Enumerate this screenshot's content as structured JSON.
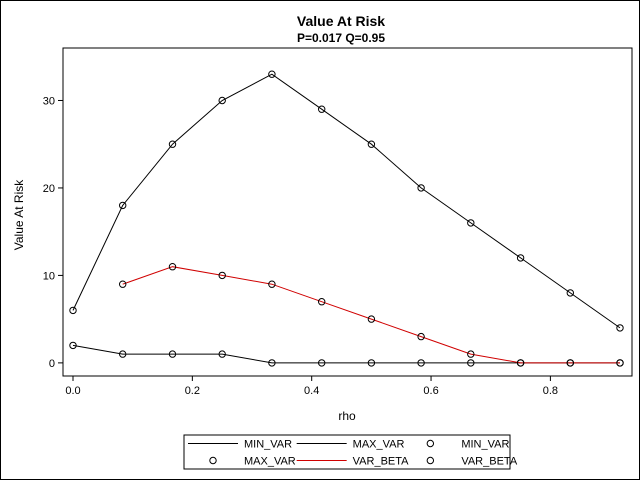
{
  "chart_data": {
    "type": "line",
    "title": "Value At Risk",
    "subtitle": "P=0.017 Q=0.95",
    "xlabel": "rho",
    "ylabel": "Value At Risk",
    "xlim": [
      0.0,
      0.92
    ],
    "ylim": [
      -1.5,
      36
    ],
    "xticks": [
      "0.0",
      "0.2",
      "0.4",
      "0.6",
      "0.8"
    ],
    "xtick_values": [
      0.0,
      0.2,
      0.4,
      0.6,
      0.8
    ],
    "yticks": [
      "0",
      "10",
      "20",
      "30"
    ],
    "ytick_values": [
      0,
      10,
      20,
      30
    ],
    "grid": false,
    "legend_position": "bottom",
    "series": [
      {
        "name": "MIN_VAR",
        "color": "#000000",
        "x": [
          0.0,
          0.0833,
          0.1667,
          0.25,
          0.3333,
          0.4167,
          0.5,
          0.5833,
          0.6667,
          0.75,
          0.8333,
          0.9167
        ],
        "values": [
          2,
          1,
          1,
          1,
          0,
          0,
          0,
          0,
          0,
          0,
          0,
          0
        ]
      },
      {
        "name": "MAX_VAR",
        "color": "#000000",
        "x": [
          0.0,
          0.0833,
          0.1667,
          0.25,
          0.3333,
          0.4167,
          0.5,
          0.5833,
          0.6667,
          0.75,
          0.8333,
          0.9167
        ],
        "values": [
          6,
          18,
          25,
          30,
          33,
          29,
          25,
          20,
          16,
          12,
          8,
          4
        ]
      },
      {
        "name": "VAR_BETA",
        "color": "#d00000",
        "x": [
          0.0833,
          0.1667,
          0.25,
          0.3333,
          0.4167,
          0.5,
          0.5833,
          0.6667,
          0.75,
          0.8333,
          0.9167
        ],
        "values": [
          9,
          11,
          10,
          9,
          7,
          5,
          3,
          1,
          0,
          0,
          0
        ]
      }
    ],
    "legend": [
      {
        "label": "MIN_VAR",
        "kind": "line",
        "color": "#000000"
      },
      {
        "label": "MAX_VAR",
        "kind": "line",
        "color": "#000000"
      },
      {
        "label": "MIN_VAR",
        "kind": "marker",
        "color": "#000000"
      },
      {
        "label": "MAX_VAR",
        "kind": "marker",
        "color": "#000000"
      },
      {
        "label": "VAR_BETA",
        "kind": "line",
        "color": "#d00000"
      },
      {
        "label": "VAR_BETA",
        "kind": "marker",
        "color": "#000000"
      }
    ]
  }
}
